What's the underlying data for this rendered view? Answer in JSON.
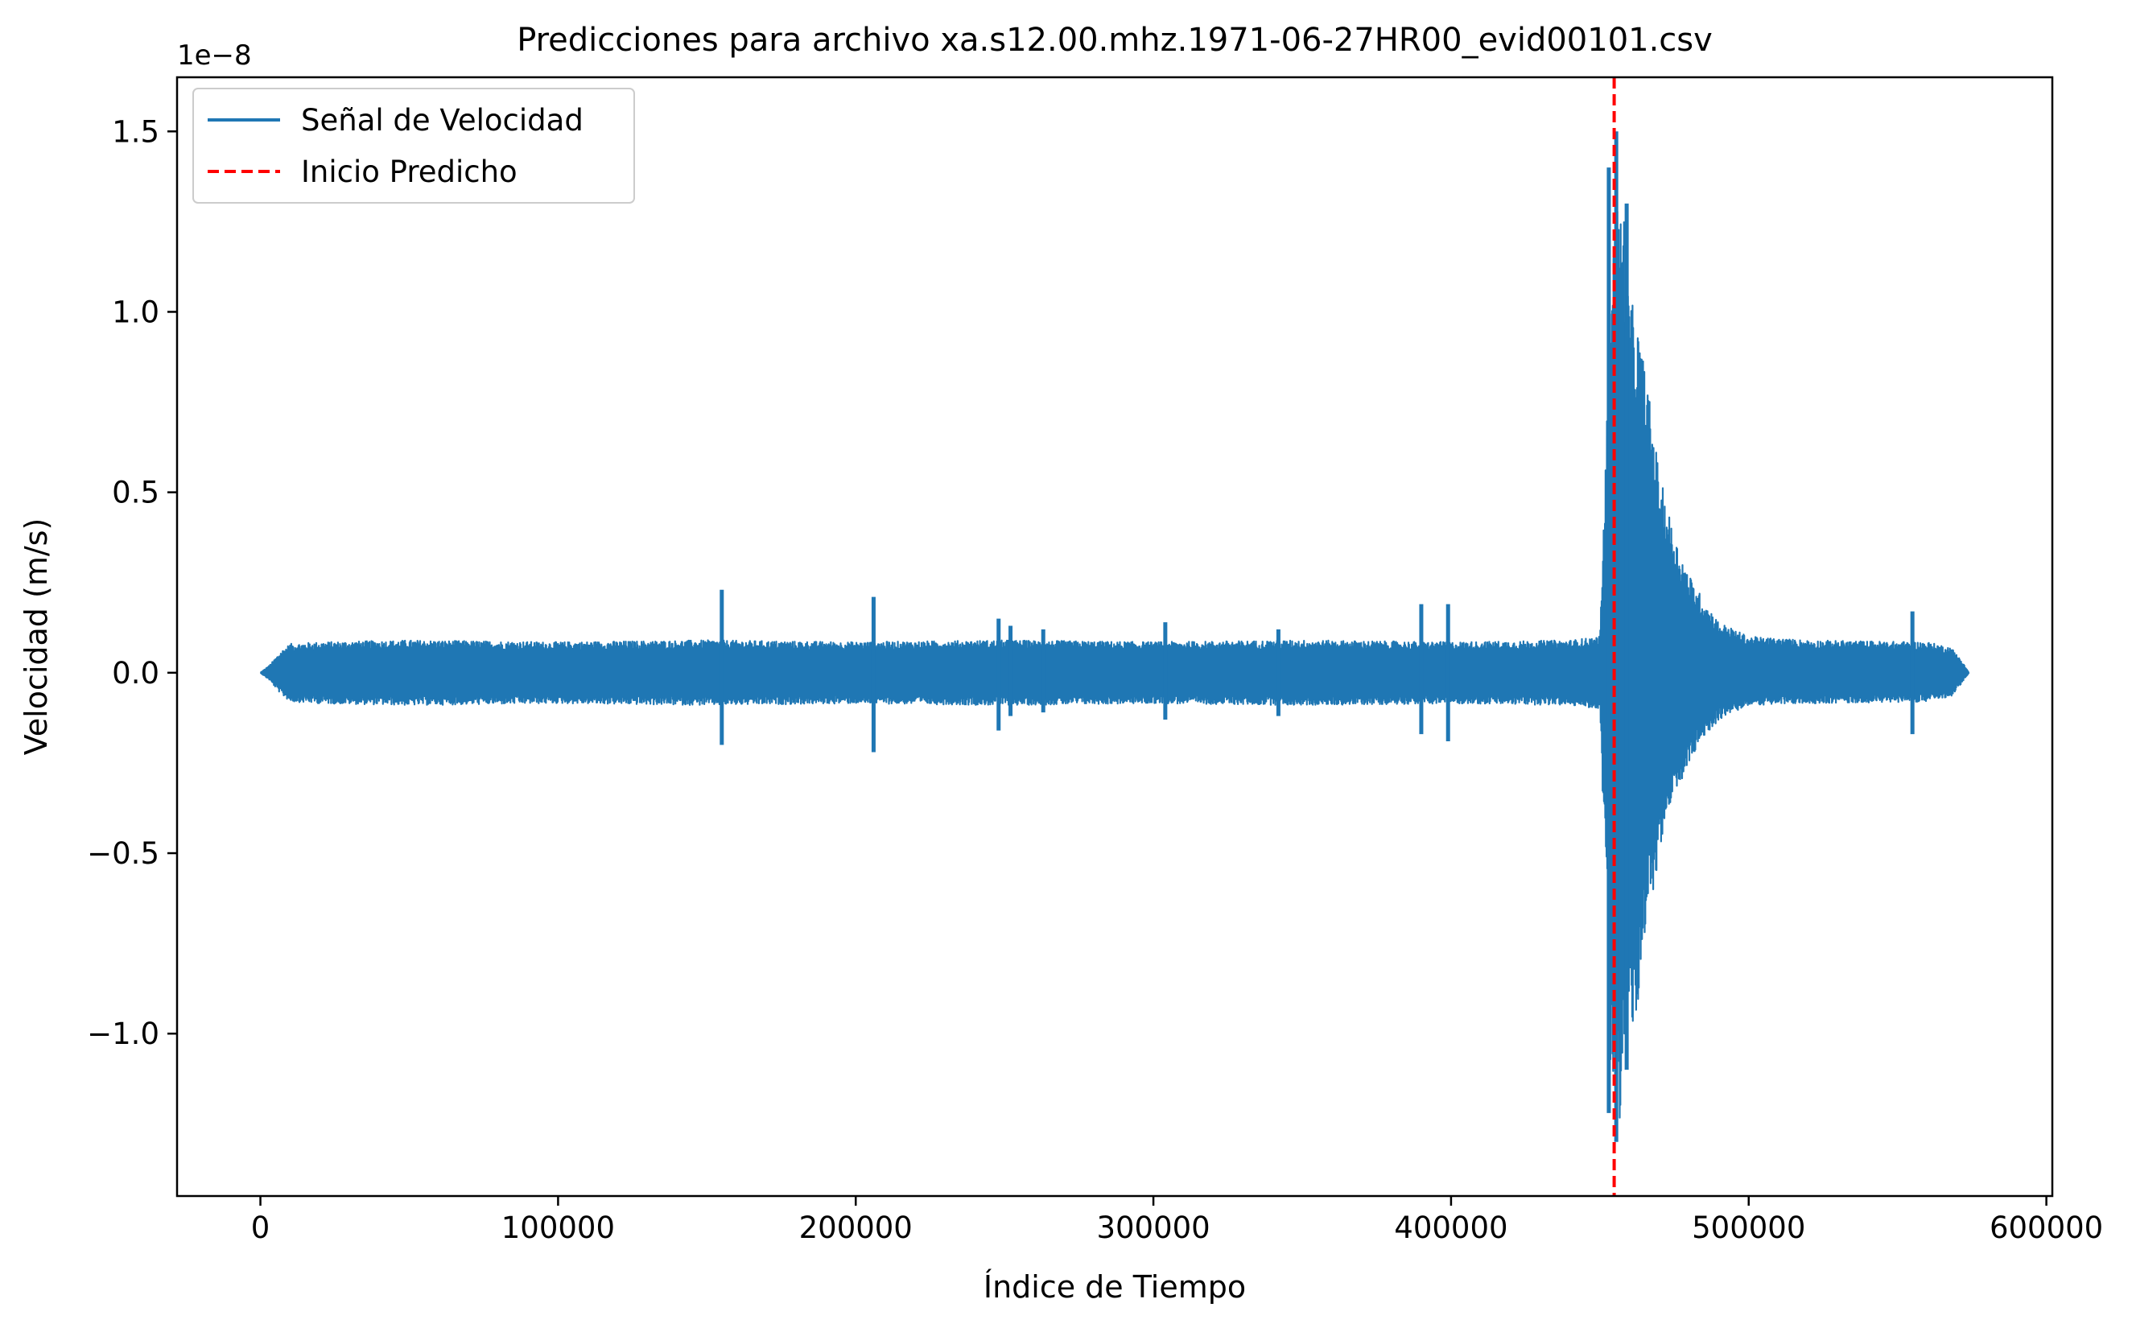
{
  "chart_data": {
    "type": "line",
    "title": "Predicciones para archivo xa.s12.00.mhz.1971-06-27HR00_evid00101.csv",
    "xlabel": "Índice de Tiempo",
    "ylabel": "Velocidad (m/s)",
    "y_offset_label": "1e−8",
    "xlim": [
      -28000,
      602000
    ],
    "ylim": [
      -1.45,
      1.65
    ],
    "y_scale_factor": 1e-08,
    "grid": false,
    "legend_position": "top-left",
    "x_ticks": [
      0,
      100000,
      200000,
      300000,
      400000,
      500000,
      600000
    ],
    "x_tick_labels": [
      "0",
      "100000",
      "200000",
      "300000",
      "400000",
      "500000",
      "600000"
    ],
    "y_ticks": [
      -1.0,
      -0.5,
      0.0,
      0.5,
      1.0,
      1.5
    ],
    "y_tick_labels": [
      "−1.0",
      "−0.5",
      "0.0",
      "0.5",
      "1.0",
      "1.5"
    ],
    "series": [
      {
        "name": "Señal de Velocidad",
        "color": "#1f77b4",
        "style": "solid",
        "envelope": {
          "x": [
            0,
            3000,
            7000,
            10000,
            20000,
            50000,
            100000,
            150000,
            200000,
            250000,
            300000,
            350000,
            400000,
            440000,
            450000,
            452000,
            454000,
            456000,
            458000,
            460000,
            463000,
            466000,
            470000,
            475000,
            480000,
            485000,
            490000,
            500000,
            520000,
            560000,
            568000,
            571000,
            574000
          ],
          "upper": [
            0.0,
            0.02,
            0.06,
            0.08,
            0.085,
            0.09,
            0.085,
            0.09,
            0.085,
            0.09,
            0.085,
            0.09,
            0.085,
            0.09,
            0.1,
            0.6,
            1.25,
            1.3,
            1.3,
            1.05,
            0.95,
            0.8,
            0.55,
            0.38,
            0.27,
            0.2,
            0.14,
            0.1,
            0.09,
            0.085,
            0.07,
            0.04,
            0.0
          ],
          "lower": [
            0.0,
            -0.02,
            -0.06,
            -0.08,
            -0.085,
            -0.09,
            -0.085,
            -0.09,
            -0.085,
            -0.09,
            -0.085,
            -0.09,
            -0.085,
            -0.09,
            -0.1,
            -0.6,
            -1.2,
            -1.3,
            -1.1,
            -1.0,
            -0.95,
            -0.7,
            -0.5,
            -0.35,
            -0.25,
            -0.18,
            -0.13,
            -0.09,
            -0.085,
            -0.08,
            -0.065,
            -0.035,
            0.0
          ]
        },
        "spikes": [
          {
            "x": 155000,
            "high": 0.23,
            "low": -0.2
          },
          {
            "x": 206000,
            "high": 0.21,
            "low": -0.22
          },
          {
            "x": 248000,
            "high": 0.15,
            "low": -0.16
          },
          {
            "x": 252000,
            "high": 0.13,
            "low": -0.12
          },
          {
            "x": 263000,
            "high": 0.12,
            "low": -0.11
          },
          {
            "x": 304000,
            "high": 0.14,
            "low": -0.13
          },
          {
            "x": 342000,
            "high": 0.12,
            "low": -0.12
          },
          {
            "x": 390000,
            "high": 0.19,
            "low": -0.17
          },
          {
            "x": 399000,
            "high": 0.19,
            "low": -0.19
          },
          {
            "x": 555000,
            "high": 0.17,
            "low": -0.17
          },
          {
            "x": 453000,
            "high": 1.4,
            "low": -1.22
          },
          {
            "x": 455500,
            "high": 1.5,
            "low": -1.3
          },
          {
            "x": 459000,
            "high": 1.3,
            "low": -1.1
          }
        ]
      },
      {
        "name": "Inicio Predicho",
        "color": "#ff0000",
        "style": "dashed",
        "vline_x": 454800
      }
    ]
  }
}
